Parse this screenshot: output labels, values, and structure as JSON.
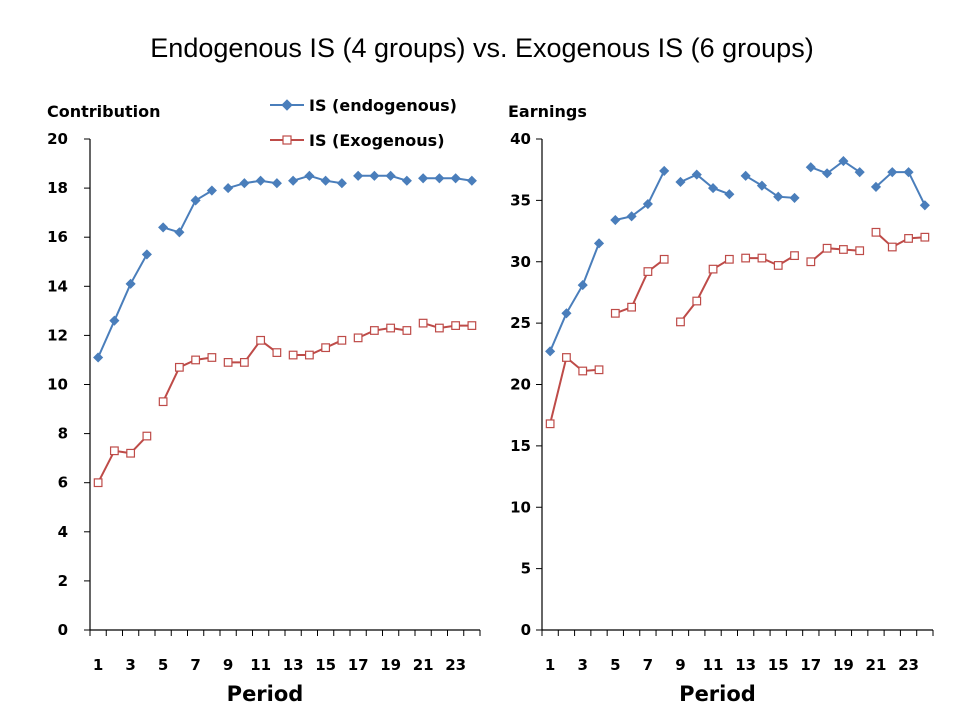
{
  "title": "Endogenous IS (4 groups) vs. Exogenous IS (6 groups)",
  "legend": {
    "placement": "top-center",
    "items": [
      "IS (endogenous)",
      "IS (Exogenous)"
    ]
  },
  "colors": {
    "endogenous": "#4a7ebb",
    "exogenous": "#be4b48",
    "axis": "#000000"
  },
  "chart_data": [
    {
      "type": "line",
      "ylabel": "Contribution",
      "xlabel": "Period",
      "ylim": [
        0,
        20
      ],
      "yticks": [
        0,
        2,
        4,
        6,
        8,
        10,
        12,
        14,
        16,
        18,
        20
      ],
      "x": [
        1,
        2,
        3,
        4,
        5,
        6,
        7,
        8,
        9,
        10,
        11,
        12,
        13,
        14,
        15,
        16,
        17,
        18,
        19,
        20,
        21,
        22,
        23,
        24
      ],
      "xtick_labels": [
        "1",
        "3",
        "5",
        "7",
        "9",
        "11",
        "13",
        "15",
        "17",
        "19",
        "21",
        "23"
      ],
      "segments": [
        [
          1,
          4
        ],
        [
          5,
          8
        ],
        [
          9,
          12
        ],
        [
          13,
          16
        ],
        [
          17,
          20
        ],
        [
          21,
          24
        ]
      ],
      "series": [
        {
          "name": "IS (endogenous)",
          "marker": "diamond",
          "values": [
            11.1,
            12.6,
            14.1,
            15.3,
            16.4,
            16.2,
            17.5,
            17.9,
            18.0,
            18.2,
            18.3,
            18.2,
            18.3,
            18.5,
            18.3,
            18.2,
            18.5,
            18.5,
            18.5,
            18.3,
            18.4,
            18.4,
            18.4,
            18.3
          ]
        },
        {
          "name": "IS (Exogenous)",
          "marker": "square",
          "values": [
            6.0,
            7.3,
            7.2,
            7.9,
            9.3,
            10.7,
            11.0,
            11.1,
            10.9,
            10.9,
            11.8,
            11.3,
            11.2,
            11.2,
            11.5,
            11.8,
            11.9,
            12.2,
            12.3,
            12.2,
            12.5,
            12.3,
            12.4,
            12.4
          ]
        }
      ]
    },
    {
      "type": "line",
      "ylabel": "Earnings",
      "xlabel": "Period",
      "ylim": [
        0,
        40
      ],
      "yticks": [
        0,
        5,
        10,
        15,
        20,
        25,
        30,
        35,
        40
      ],
      "x": [
        1,
        2,
        3,
        4,
        5,
        6,
        7,
        8,
        9,
        10,
        11,
        12,
        13,
        14,
        15,
        16,
        17,
        18,
        19,
        20,
        21,
        22,
        23,
        24
      ],
      "xtick_labels": [
        "1",
        "3",
        "5",
        "7",
        "9",
        "11",
        "13",
        "15",
        "17",
        "19",
        "21",
        "23"
      ],
      "segments": [
        [
          1,
          4
        ],
        [
          5,
          8
        ],
        [
          9,
          12
        ],
        [
          13,
          16
        ],
        [
          17,
          20
        ],
        [
          21,
          24
        ]
      ],
      "series": [
        {
          "name": "IS (endogenous)",
          "marker": "diamond",
          "values": [
            22.7,
            25.8,
            28.1,
            31.5,
            33.4,
            33.7,
            34.7,
            37.4,
            36.5,
            37.1,
            36.0,
            35.5,
            37.0,
            36.2,
            35.3,
            35.2,
            37.7,
            37.2,
            38.2,
            37.3,
            36.1,
            37.3,
            37.3,
            34.6
          ]
        },
        {
          "name": "IS (Exogenous)",
          "marker": "square",
          "values": [
            16.8,
            22.2,
            21.1,
            21.2,
            25.8,
            26.3,
            29.2,
            30.2,
            25.1,
            26.8,
            29.4,
            30.2,
            30.3,
            30.3,
            29.7,
            30.5,
            30.0,
            31.1,
            31.0,
            30.9,
            32.4,
            31.2,
            31.9,
            32.0
          ]
        }
      ]
    }
  ]
}
